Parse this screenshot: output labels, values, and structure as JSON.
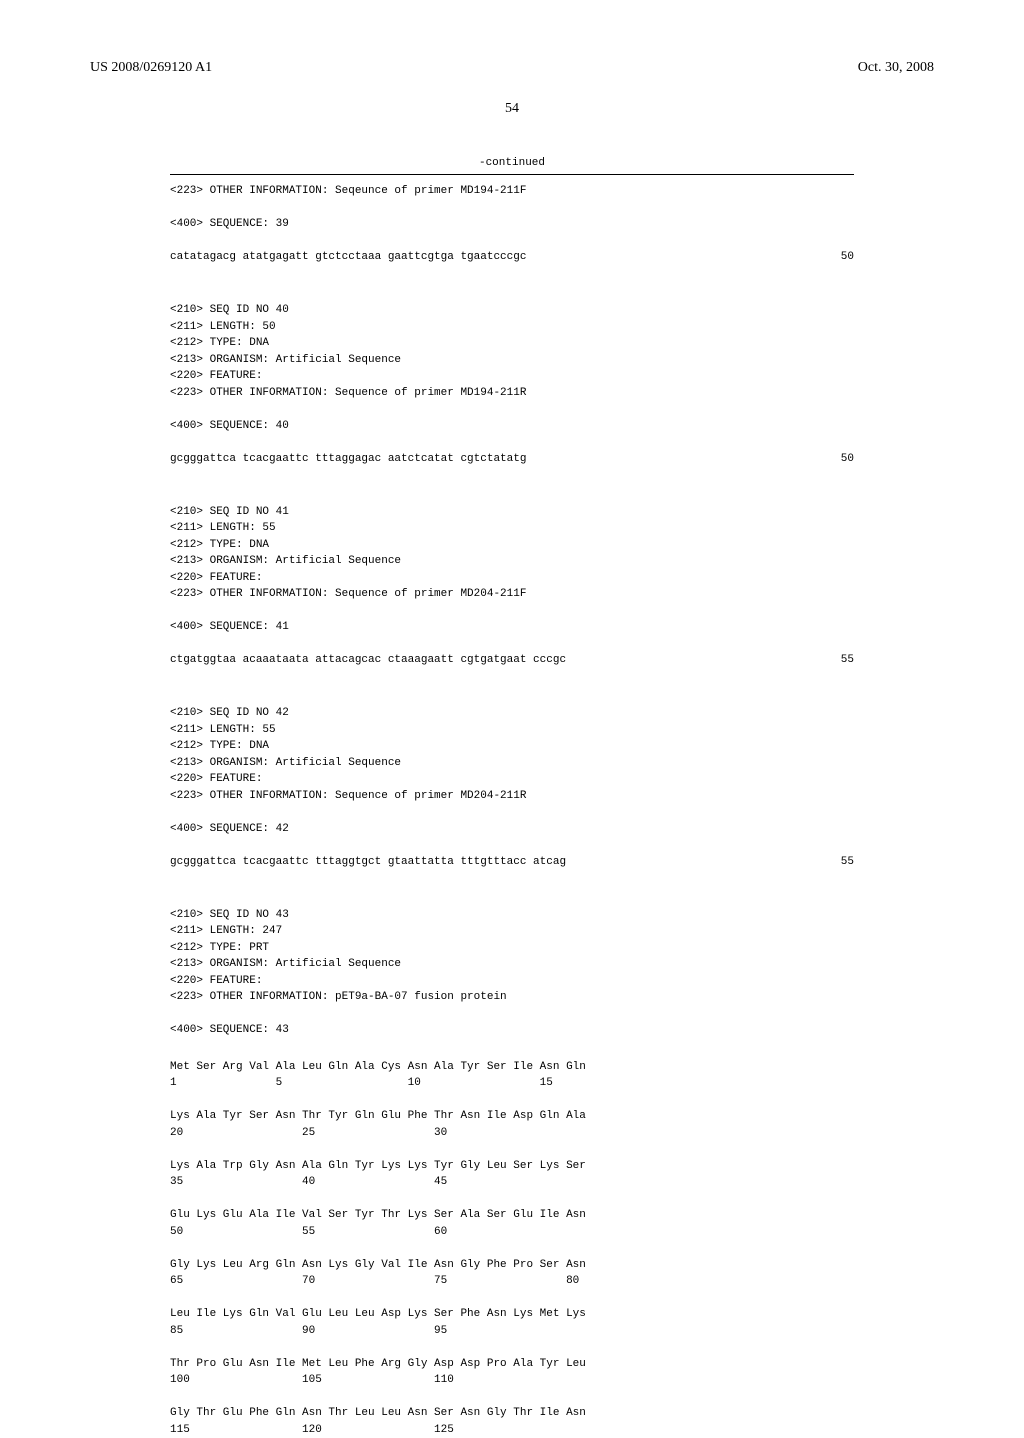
{
  "header": {
    "pub_number": "US 2008/0269120 A1",
    "pub_date": "Oct. 30, 2008"
  },
  "page_number": "54",
  "continued_label": "-continued",
  "sequences": [
    {
      "info": "<223> OTHER INFORMATION: Seqeunce of primer MD194-211F",
      "seq_header": "<400> SEQUENCE: 39",
      "seq_data": "catatagacg atatgagatt gtctcctaaa gaattcgtga tgaatcccgc",
      "seq_count": "50"
    },
    {
      "meta": [
        "<210> SEQ ID NO 40",
        "<211> LENGTH: 50",
        "<212> TYPE: DNA",
        "<213> ORGANISM: Artificial Sequence",
        "<220> FEATURE:",
        "<223> OTHER INFORMATION: Sequence of primer MD194-211R"
      ],
      "seq_header": "<400> SEQUENCE: 40",
      "seq_data": "gcgggattca tcacgaattc tttaggagac aatctcatat cgtctatatg",
      "seq_count": "50"
    },
    {
      "meta": [
        "<210> SEQ ID NO 41",
        "<211> LENGTH: 55",
        "<212> TYPE: DNA",
        "<213> ORGANISM: Artificial Sequence",
        "<220> FEATURE:",
        "<223> OTHER INFORMATION: Sequence of primer MD204-211F"
      ],
      "seq_header": "<400> SEQUENCE: 41",
      "seq_data": "ctgatggtaa acaaataata attacagcac ctaaagaatt cgtgatgaat cccgc",
      "seq_count": "55"
    },
    {
      "meta": [
        "<210> SEQ ID NO 42",
        "<211> LENGTH: 55",
        "<212> TYPE: DNA",
        "<213> ORGANISM: Artificial Sequence",
        "<220> FEATURE:",
        "<223> OTHER INFORMATION: Sequence of primer MD204-211R"
      ],
      "seq_header": "<400> SEQUENCE: 42",
      "seq_data": "gcgggattca tcacgaattc tttaggtgct gtaattatta tttgtttacc atcag",
      "seq_count": "55"
    },
    {
      "meta": [
        "<210> SEQ ID NO 43",
        "<211> LENGTH: 247",
        "<212> TYPE: PRT",
        "<213> ORGANISM: Artificial Sequence",
        "<220> FEATURE:",
        "<223> OTHER INFORMATION: pET9a-BA-07 fusion protein"
      ],
      "seq_header": "<400> SEQUENCE: 43"
    }
  ],
  "protein": [
    {
      "aa": "Met Ser Arg Val Ala Leu Gln Ala Cys Asn Ala Tyr Ser Ile Asn Gln",
      "nums": "1               5                   10                  15"
    },
    {
      "aa": "Lys Ala Tyr Ser Asn Thr Tyr Gln Glu Phe Thr Asn Ile Asp Gln Ala",
      "nums": "20                  25                  30"
    },
    {
      "aa": "Lys Ala Trp Gly Asn Ala Gln Tyr Lys Lys Tyr Gly Leu Ser Lys Ser",
      "nums": "35                  40                  45"
    },
    {
      "aa": "Glu Lys Glu Ala Ile Val Ser Tyr Thr Lys Ser Ala Ser Glu Ile Asn",
      "nums": "50                  55                  60"
    },
    {
      "aa": "Gly Lys Leu Arg Gln Asn Lys Gly Val Ile Asn Gly Phe Pro Ser Asn",
      "nums": "65                  70                  75                  80"
    },
    {
      "aa": "Leu Ile Lys Gln Val Glu Leu Leu Asp Lys Ser Phe Asn Lys Met Lys",
      "nums": "85                  90                  95"
    },
    {
      "aa": "Thr Pro Glu Asn Ile Met Leu Phe Arg Gly Asp Asp Pro Ala Tyr Leu",
      "nums": "100                 105                 110"
    },
    {
      "aa": "Gly Thr Glu Phe Gln Asn Thr Leu Leu Asn Ser Asn Gly Thr Ile Asn",
      "nums": "115                 120                 125"
    }
  ]
}
